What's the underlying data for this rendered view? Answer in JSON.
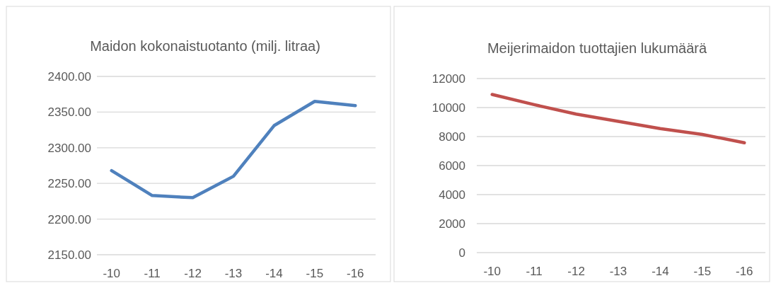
{
  "chart_data": [
    {
      "type": "line",
      "title": "Maidon kokonaistuotanto (milj. litraa)",
      "categories": [
        "-10",
        "-11",
        "-12",
        "-13",
        "-14",
        "-15",
        "-16"
      ],
      "series": [
        {
          "color": "#4f81bd",
          "values": [
            2268,
            2233,
            2230,
            2260,
            2331,
            2365,
            2359
          ]
        }
      ],
      "ylim": [
        2150,
        2400
      ],
      "yticks": [
        {
          "value": 2150,
          "label": "2150.00"
        },
        {
          "value": 2200,
          "label": "2200.00"
        },
        {
          "value": 2250,
          "label": "2250.00"
        },
        {
          "value": 2300,
          "label": "2300.00"
        },
        {
          "value": 2350,
          "label": "2350.00"
        },
        {
          "value": 2400,
          "label": "2400.00"
        }
      ],
      "grid": "y"
    },
    {
      "type": "line",
      "title": "Meijerimaidon tuottajien lukumäärä",
      "categories": [
        "-10",
        "-11",
        "-12",
        "-13",
        "-14",
        "-15",
        "-16"
      ],
      "series": [
        {
          "color": "#c0504d",
          "values": [
            10900,
            10200,
            9550,
            9050,
            8550,
            8150,
            7570
          ]
        }
      ],
      "ylim": [
        0,
        12000
      ],
      "yticks": [
        0,
        2000,
        4000,
        6000,
        8000,
        10000,
        12000
      ],
      "grid": "y"
    }
  ]
}
